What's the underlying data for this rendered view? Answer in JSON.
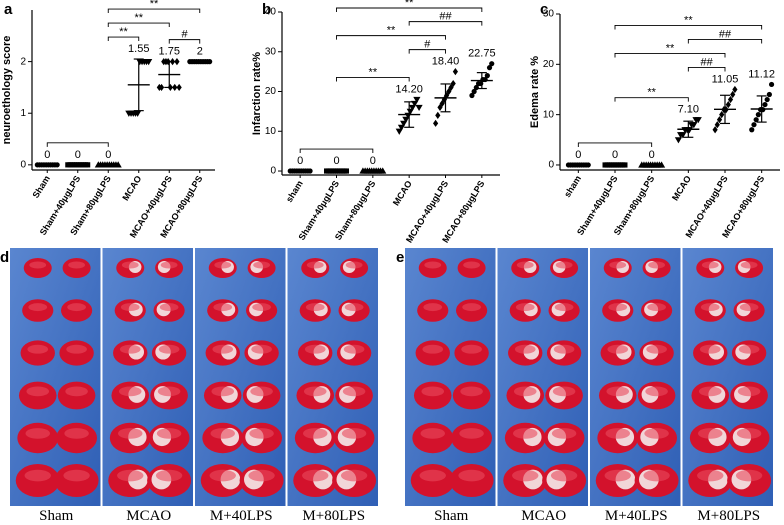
{
  "chart_data": [
    {
      "type": "scatter",
      "panel": "a",
      "y_label": "neuroethology score",
      "categories": [
        "Sham",
        "Sham+40μgLPS",
        "Sham+80μgLPS",
        "MCAO",
        "MCAO+40μgLPS",
        "MCAO+80μgLPS"
      ],
      "markers": [
        "circle",
        "square",
        "triangle-up",
        "triangle-down",
        "diamond",
        "circle"
      ],
      "values": [
        0,
        0,
        0,
        1.55,
        1.75,
        2
      ],
      "errors": [
        0,
        0,
        0,
        0.5,
        0.25,
        0
      ],
      "points": [
        [
          0,
          0,
          0,
          0,
          0,
          0,
          0,
          0,
          0,
          0
        ],
        [
          0,
          0,
          0,
          0,
          0,
          0,
          0,
          0,
          0,
          0
        ],
        [
          0,
          0,
          0,
          0,
          0,
          0,
          0,
          0,
          0,
          0
        ],
        [
          1,
          1,
          1,
          1,
          1,
          2,
          2,
          2,
          2,
          2
        ],
        [
          1.5,
          1.5,
          2,
          2,
          2,
          1.5,
          2,
          1.5,
          2,
          1.5
        ],
        [
          2,
          2,
          2,
          2,
          2,
          2,
          2,
          2,
          2,
          2
        ]
      ],
      "color": "#000000",
      "ylim": [
        -0.1,
        3
      ],
      "yticks": [
        0,
        1,
        2
      ],
      "brackets": [
        {
          "from": "Sham",
          "to": "Sham+80μgLPS"
        },
        {
          "from": "Sham+80μgLPS",
          "to": "MCAO",
          "label": "**"
        },
        {
          "from": "Sham+80μgLPS",
          "to": "MCAO+40μgLPS",
          "label": "**"
        },
        {
          "from": "MCAO+40μgLPS",
          "to": "MCAO+80μgLPS",
          "label": "#"
        },
        {
          "from": "Sham+80μgLPS",
          "to": "MCAO+80μgLPS",
          "label": "**"
        }
      ]
    },
    {
      "type": "scatter",
      "panel": "b",
      "y_label": "Infarction rate%",
      "categories": [
        "sham",
        "Sham+40μgLPS",
        "Sham+80μgLPS",
        "MCAO",
        "MCAO+40μgLPS",
        "MCAO+80μgLPS"
      ],
      "markers": [
        "circle",
        "square",
        "triangle-up",
        "triangle-down",
        "diamond",
        "circle"
      ],
      "values": [
        0,
        0,
        0,
        14.2,
        18.4,
        22.75
      ],
      "value_labels": [
        "0",
        "0",
        "0",
        "14.20",
        "18.40",
        "22.75"
      ],
      "errors": [
        0,
        0,
        0,
        3.2,
        3.5,
        2
      ],
      "points": [
        [
          0,
          0,
          0,
          0,
          0,
          0,
          0,
          0,
          0,
          0
        ],
        [
          0,
          0,
          0,
          0,
          0,
          0,
          0,
          0,
          0,
          0
        ],
        [
          0,
          0,
          0,
          0,
          0,
          0,
          0,
          0,
          0,
          0
        ],
        [
          10,
          11,
          12,
          13,
          14,
          15,
          16,
          17,
          18,
          16
        ],
        [
          12,
          14,
          16,
          17,
          18,
          19,
          20,
          21,
          22,
          25
        ],
        [
          19,
          20,
          21,
          22,
          22,
          23,
          23,
          24,
          26,
          27
        ]
      ],
      "color": "#000000",
      "ylim": [
        -1,
        40
      ],
      "yticks": [
        0,
        10,
        20,
        30,
        40
      ],
      "brackets": [
        {
          "from": "sham",
          "to": "Sham+80μgLPS"
        },
        {
          "from": "Sham+40μgLPS",
          "to": "MCAO",
          "label": "**"
        },
        {
          "from": "MCAO",
          "to": "MCAO+40μgLPS",
          "label": "#"
        },
        {
          "from": "Sham+40μgLPS",
          "to": "MCAO+40μgLPS",
          "label": "**"
        },
        {
          "from": "MCAO",
          "to": "MCAO+80μgLPS",
          "label": "##"
        },
        {
          "from": "Sham+40μgLPS",
          "to": "MCAO+80μgLPS",
          "label": "**"
        }
      ]
    },
    {
      "type": "scatter",
      "panel": "c",
      "y_label": "Edema rate %",
      "categories": [
        "sham",
        "Sham+40μgLPS",
        "Sham+80μgLPS",
        "MCAO",
        "MCAO+40μgLPS",
        "MCAO+80μgLPS"
      ],
      "markers": [
        "circle",
        "square",
        "triangle-up",
        "triangle-down",
        "diamond",
        "circle"
      ],
      "values": [
        0,
        0,
        0,
        7.1,
        11.05,
        11.12
      ],
      "value_labels": [
        "0",
        "0",
        "0",
        "7.10",
        "11.05",
        "11.12"
      ],
      "errors": [
        0,
        0,
        0,
        1.6,
        2.8,
        2.6
      ],
      "points": [
        [
          0,
          0,
          0,
          0,
          0,
          0,
          0,
          0,
          0,
          0
        ],
        [
          0,
          0,
          0,
          0,
          0,
          0,
          0,
          0,
          0,
          0
        ],
        [
          0,
          0,
          0,
          0,
          0,
          0,
          0,
          0,
          0,
          0
        ],
        [
          5,
          6,
          6,
          7,
          7,
          7,
          8,
          8,
          9,
          9
        ],
        [
          7,
          8,
          9,
          10,
          11,
          11,
          12,
          13,
          14,
          15
        ],
        [
          7,
          8,
          9,
          10,
          11,
          11,
          12,
          13,
          14,
          16
        ]
      ],
      "color": "#000000",
      "ylim": [
        -1,
        30
      ],
      "yticks": [
        0,
        10,
        20,
        30
      ],
      "brackets": [
        {
          "from": "sham",
          "to": "Sham+80μgLPS"
        },
        {
          "from": "Sham+40μgLPS",
          "to": "MCAO",
          "label": "**"
        },
        {
          "from": "MCAO",
          "to": "MCAO+40μgLPS",
          "label": "##"
        },
        {
          "from": "Sham+40μgLPS",
          "to": "MCAO+40μgLPS",
          "label": "**"
        },
        {
          "from": "MCAO",
          "to": "MCAO+80μgLPS",
          "label": "##"
        },
        {
          "from": "Sham+40μgLPS",
          "to": "MCAO+80μgLPS",
          "label": "**"
        }
      ]
    }
  ],
  "photo_panels": [
    {
      "letter": "d",
      "groups": [
        "Sham",
        "MCAO",
        "M+40LPS",
        "M+80LPS"
      ]
    },
    {
      "letter": "e",
      "groups": [
        "Sham",
        "MCAO",
        "M+40LPS",
        "M+80LPS"
      ]
    }
  ]
}
